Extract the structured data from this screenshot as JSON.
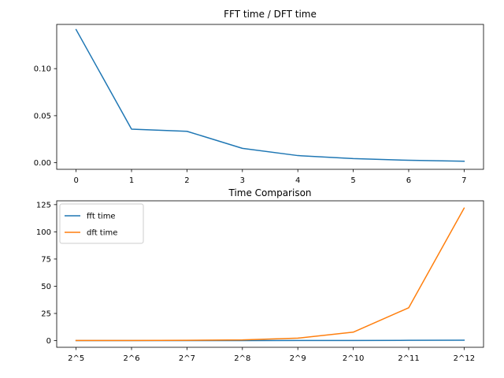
{
  "chart_data": [
    {
      "type": "line",
      "title": "FFT time / DFT time",
      "xlabel": "",
      "ylabel": "",
      "x": [
        0,
        1,
        2,
        3,
        4,
        5,
        6,
        7
      ],
      "xticks": [
        "0",
        "1",
        "2",
        "3",
        "4",
        "5",
        "6",
        "7"
      ],
      "xlim": [
        -0.35,
        7.35
      ],
      "yticks": [
        0.0,
        0.05,
        0.1
      ],
      "ytick_labels": [
        "0.00",
        "0.05",
        "0.10"
      ],
      "ylim": [
        -0.007,
        0.147
      ],
      "grid": false,
      "series": [
        {
          "color": "#1f77b4",
          "values": [
            0.1415,
            0.0357,
            0.0334,
            0.0153,
            0.0076,
            0.0044,
            0.0026,
            0.0016
          ]
        }
      ]
    },
    {
      "type": "line",
      "title": "Time Comparison",
      "xlabel": "",
      "ylabel": "",
      "x": [
        0,
        1,
        2,
        3,
        4,
        5,
        6,
        7
      ],
      "xticks": [
        "2^5",
        "2^6",
        "2^7",
        "2^8",
        "2^9",
        "2^10",
        "2^11",
        "2^12"
      ],
      "xlim": [
        -0.35,
        7.35
      ],
      "yticks": [
        0,
        25,
        50,
        75,
        100,
        125
      ],
      "ytick_labels": [
        "0",
        "25",
        "50",
        "75",
        "100",
        "125"
      ],
      "ylim": [
        -6.1,
        128.5
      ],
      "grid": false,
      "legend": "top-left",
      "series": [
        {
          "name": "fft time",
          "color": "#1f77b4",
          "values": [
            0.02,
            0.03,
            0.05,
            0.08,
            0.1,
            0.18,
            0.28,
            0.45
          ]
        },
        {
          "name": "dft time",
          "color": "#ff7f0e",
          "values": [
            0.1,
            0.15,
            0.3,
            0.7,
            2.3,
            7.8,
            30.2,
            121.8
          ]
        }
      ]
    }
  ]
}
